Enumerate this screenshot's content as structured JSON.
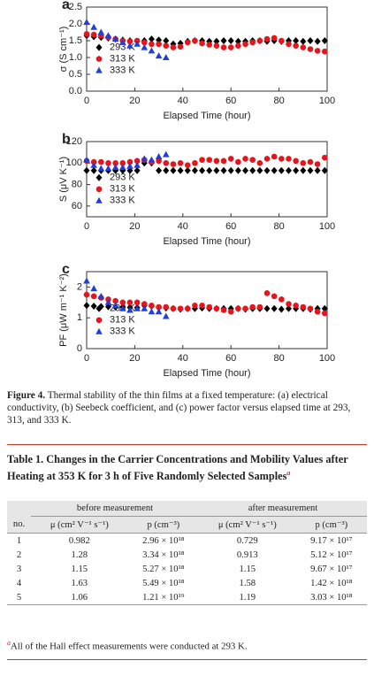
{
  "chart_data": [
    {
      "type": "scatter",
      "panel_label": "a",
      "x_label": "Elapsed Time (hour)",
      "y_label": "σ (S cm⁻¹)",
      "xlim": [
        0,
        100
      ],
      "xticks": [
        0,
        20,
        40,
        60,
        80,
        100
      ],
      "ylim": [
        0,
        2.5
      ],
      "yticks": [
        {
          "value": 0,
          "label": "0.0"
        },
        0.5,
        {
          "value": 1,
          "label": "1.0"
        },
        1.5,
        {
          "value": 2,
          "label": "2.0"
        },
        2.5
      ],
      "legend": "left",
      "series": [
        {
          "name": "293 K",
          "color": "#000000",
          "marker": "diamond",
          "x": [
            0,
            3,
            6,
            9,
            12,
            15,
            18,
            21,
            24,
            27,
            30,
            33,
            36,
            39,
            42,
            45,
            48,
            51,
            54,
            57,
            60,
            63,
            66,
            69,
            72,
            75,
            78,
            81,
            84,
            87,
            90,
            93,
            96,
            99
          ],
          "values": [
            1.65,
            1.62,
            1.6,
            1.58,
            1.55,
            1.52,
            1.5,
            1.48,
            1.5,
            1.55,
            1.52,
            1.5,
            1.4,
            1.42,
            1.48,
            1.5,
            1.5,
            1.48,
            1.48,
            1.5,
            1.5,
            1.48,
            1.48,
            1.5,
            1.5,
            1.48,
            1.5,
            1.48,
            1.5,
            1.5,
            1.48,
            1.5,
            1.48,
            1.5
          ]
        },
        {
          "name": "313 K",
          "color": "#e8141c",
          "marker": "circle",
          "x": [
            0,
            3,
            6,
            9,
            12,
            15,
            18,
            21,
            24,
            27,
            30,
            33,
            36,
            39,
            42,
            45,
            48,
            51,
            54,
            57,
            60,
            63,
            66,
            69,
            72,
            75,
            78,
            81,
            84,
            87,
            90,
            93,
            96,
            99
          ],
          "values": [
            1.7,
            1.68,
            1.65,
            1.6,
            1.55,
            1.5,
            1.48,
            1.5,
            1.45,
            1.4,
            1.4,
            1.35,
            1.3,
            1.32,
            1.45,
            1.5,
            1.42,
            1.38,
            1.35,
            1.3,
            1.3,
            1.35,
            1.4,
            1.45,
            1.5,
            1.55,
            1.58,
            1.5,
            1.4,
            1.35,
            1.3,
            1.25,
            1.2,
            1.18
          ]
        },
        {
          "name": "333 K",
          "color": "#1f3fd6",
          "marker": "triangle",
          "x": [
            0,
            3,
            6,
            9,
            12,
            15,
            18,
            21,
            24,
            27,
            30,
            33
          ],
          "values": [
            2.05,
            1.9,
            1.75,
            1.65,
            1.55,
            1.45,
            1.35,
            1.4,
            1.3,
            1.2,
            1.05,
            1.0
          ]
        }
      ]
    },
    {
      "type": "scatter",
      "panel_label": "b",
      "x_label": "Elapsed Time (hour)",
      "y_label": "S (μV K⁻¹)",
      "xlim": [
        0,
        100
      ],
      "xticks": [
        0,
        20,
        40,
        60,
        80,
        100
      ],
      "ylim": [
        50,
        120
      ],
      "yticks": [
        60,
        80,
        100,
        120
      ],
      "legend": "left",
      "series": [
        {
          "name": "293 K",
          "color": "#000000",
          "marker": "diamond",
          "x": [
            0,
            3,
            6,
            9,
            12,
            15,
            18,
            21,
            24,
            27,
            30,
            33,
            36,
            39,
            42,
            45,
            48,
            51,
            54,
            57,
            60,
            63,
            66,
            69,
            72,
            75,
            78,
            81,
            84,
            87,
            90,
            93,
            96,
            99
          ],
          "values": [
            93,
            93,
            93,
            93,
            93,
            93,
            93,
            93,
            100,
            100,
            93,
            93,
            93,
            93,
            93,
            93,
            93,
            93,
            93,
            93,
            93,
            93,
            93,
            93,
            93,
            93,
            93,
            93,
            93,
            93,
            93,
            93,
            93,
            93
          ]
        },
        {
          "name": "313 K",
          "color": "#e8141c",
          "marker": "circle",
          "x": [
            0,
            3,
            6,
            9,
            12,
            15,
            18,
            21,
            24,
            27,
            30,
            33,
            36,
            39,
            42,
            45,
            48,
            51,
            54,
            57,
            60,
            63,
            66,
            69,
            72,
            75,
            78,
            81,
            84,
            87,
            90,
            93,
            96,
            99
          ],
          "values": [
            102,
            101,
            101,
            100,
            100,
            100,
            101,
            102,
            103,
            101,
            102,
            100,
            99,
            100,
            98,
            100,
            103,
            103,
            102,
            102,
            104,
            101,
            104,
            103,
            100,
            104,
            106,
            104,
            104,
            102,
            100,
            101,
            99,
            105
          ]
        },
        {
          "name": "333 K",
          "color": "#1f3fd6",
          "marker": "triangle",
          "x": [
            0,
            3,
            6,
            9,
            12,
            15,
            18,
            21,
            24,
            27,
            30,
            33
          ],
          "values": [
            103,
            98,
            95,
            95,
            96,
            96,
            97,
            98,
            104,
            103,
            106,
            108
          ]
        }
      ]
    },
    {
      "type": "scatter",
      "panel_label": "c",
      "x_label": "Elapsed Time (hour)",
      "y_label": "PF (μW m⁻¹ K⁻²)",
      "xlim": [
        0,
        100
      ],
      "xticks": [
        0,
        20,
        40,
        60,
        80,
        100
      ],
      "ylim": [
        0,
        2.5
      ],
      "yticks": [
        0,
        1,
        2
      ],
      "legend": "left",
      "series": [
        {
          "name": "293 K",
          "color": "#000000",
          "marker": "diamond",
          "x": [
            0,
            3,
            6,
            9,
            12,
            15,
            18,
            21,
            24,
            27,
            30,
            33,
            36,
            39,
            42,
            45,
            48,
            51,
            54,
            57,
            60,
            63,
            66,
            69,
            72,
            75,
            78,
            81,
            84,
            87,
            90,
            93,
            96,
            99
          ],
          "values": [
            1.4,
            1.38,
            1.37,
            1.36,
            1.35,
            1.35,
            1.34,
            1.33,
            1.4,
            1.38,
            1.33,
            1.32,
            1.3,
            1.28,
            1.3,
            1.3,
            1.32,
            1.3,
            1.3,
            1.3,
            1.3,
            1.3,
            1.28,
            1.3,
            1.3,
            1.3,
            1.3,
            1.28,
            1.3,
            1.3,
            1.3,
            1.28,
            1.3,
            1.3
          ]
        },
        {
          "name": "313 K",
          "color": "#e8141c",
          "marker": "circle",
          "x": [
            0,
            3,
            6,
            9,
            12,
            15,
            18,
            21,
            24,
            27,
            30,
            33,
            36,
            39,
            42,
            45,
            48,
            51,
            54,
            57,
            60,
            63,
            66,
            69,
            72,
            75,
            78,
            81,
            84,
            87,
            90,
            93,
            96,
            99
          ],
          "values": [
            1.75,
            1.7,
            1.65,
            1.6,
            1.55,
            1.5,
            1.5,
            1.5,
            1.45,
            1.4,
            1.35,
            1.35,
            1.3,
            1.3,
            1.3,
            1.4,
            1.4,
            1.35,
            1.3,
            1.25,
            1.2,
            1.3,
            1.3,
            1.35,
            1.35,
            1.8,
            1.7,
            1.6,
            1.45,
            1.4,
            1.35,
            1.3,
            1.2,
            1.15
          ]
        },
        {
          "name": "333 K",
          "color": "#1f3fd6",
          "marker": "triangle",
          "x": [
            0,
            3,
            6,
            9,
            12,
            15,
            18,
            21,
            24,
            27,
            30,
            33
          ],
          "values": [
            2.2,
            1.95,
            1.7,
            1.5,
            1.4,
            1.3,
            1.25,
            1.3,
            1.3,
            1.2,
            1.2,
            1.05
          ]
        }
      ]
    }
  ],
  "figure_caption": {
    "label": "Figure 4.",
    "text": "Thermal stability of the thin films at a fixed temperature: (a) electrical conductivity, (b) Seebeck coefficient, and (c) power factor versus elapsed time at 293, 313, and 333 K."
  },
  "table": {
    "title": "Table 1. Changes in the Carrier Concentrations and Mobility Values after Heating at 353 K for 3 h of Five Randomly Selected Samples",
    "title_note": "a",
    "groups": [
      "before measurement",
      "after measurement"
    ],
    "columns": [
      "no.",
      "μ (cm² V⁻¹ s⁻¹)",
      "p (cm⁻³)",
      "μ (cm² V⁻¹ s⁻¹)",
      "p (cm⁻³)"
    ],
    "rows": [
      [
        "1",
        "0.982",
        "2.96 × 10¹⁸",
        "0.729",
        "9.17 × 10¹⁷"
      ],
      [
        "2",
        "1.28",
        "3.34 × 10¹⁸",
        "0.913",
        "5.12 × 10¹⁷"
      ],
      [
        "3",
        "1.15",
        "5.27 × 10¹⁸",
        "1.15",
        "9.67 × 10¹⁷"
      ],
      [
        "4",
        "1.63",
        "5.49 × 10¹⁸",
        "1.58",
        "1.42 × 10¹⁸"
      ],
      [
        "5",
        "1.06",
        "1.21 × 10¹⁹",
        "1.19",
        "3.03 × 10¹⁸"
      ]
    ],
    "note_mark": "a",
    "note": "All of the Hall effect measurements were conducted at 293 K."
  }
}
